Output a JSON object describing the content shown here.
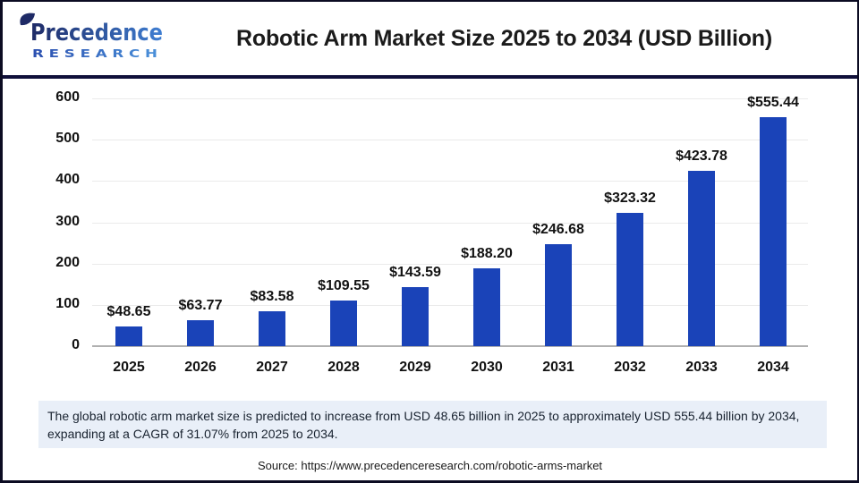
{
  "header": {
    "logo": {
      "brand": "Precedence",
      "sub": "R E S E A R C H"
    },
    "title": "Robotic Arm Market Size 2025 to 2034 (USD Billion)"
  },
  "chart_data": {
    "type": "bar",
    "title": "Robotic Arm Market Size 2025 to 2034 (USD Billion)",
    "categories": [
      "2025",
      "2026",
      "2027",
      "2028",
      "2029",
      "2030",
      "2031",
      "2032",
      "2033",
      "2034"
    ],
    "values": [
      48.65,
      63.77,
      83.58,
      109.55,
      143.59,
      188.2,
      246.68,
      323.32,
      423.78,
      555.44
    ],
    "value_labels": [
      "$48.65",
      "$63.77",
      "$83.58",
      "$109.55",
      "$143.59",
      "$188.20",
      "$246.68",
      "$323.32",
      "$423.78",
      "$555.44"
    ],
    "xlabel": "",
    "ylabel": "",
    "ylim": [
      0,
      600
    ],
    "yticks": [
      0,
      100,
      200,
      300,
      400,
      500,
      600
    ],
    "grid": true,
    "legend": false,
    "bar_color": "#1a43b8"
  },
  "note": {
    "text": "The global robotic arm market size is predicted to increase from USD 48.65 billion in 2025 to approximately USD 555.44 billion by 2034, expanding at a CAGR of 31.07% from 2025 to 2034."
  },
  "source": {
    "text": "Source: https://www.precedenceresearch.com/robotic-arms-market"
  },
  "colors": {
    "bar": "#1a43b8",
    "divider": "#10103a",
    "note_background": "#e9eff8",
    "gridline": "#eaeaea",
    "baseline": "#b0b0b0",
    "logo_dark": "#1e2a66",
    "logo_light": "#3f7ed2"
  }
}
